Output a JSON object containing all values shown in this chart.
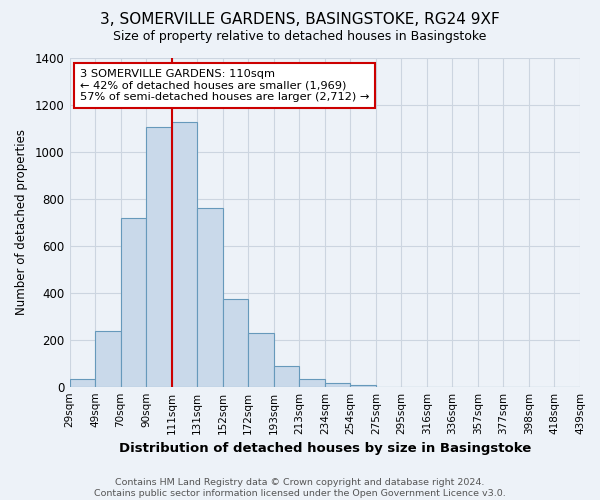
{
  "title": "3, SOMERVILLE GARDENS, BASINGSTOKE, RG24 9XF",
  "subtitle": "Size of property relative to detached houses in Basingstoke",
  "xlabel": "Distribution of detached houses by size in Basingstoke",
  "ylabel": "Number of detached properties",
  "categories": [
    "29sqm",
    "49sqm",
    "70sqm",
    "90sqm",
    "111sqm",
    "131sqm",
    "152sqm",
    "172sqm",
    "193sqm",
    "213sqm",
    "234sqm",
    "254sqm",
    "275sqm",
    "295sqm",
    "316sqm",
    "336sqm",
    "357sqm",
    "377sqm",
    "398sqm",
    "418sqm",
    "439sqm"
  ],
  "bar_heights": [
    35,
    240,
    720,
    1105,
    1125,
    760,
    375,
    230,
    90,
    35,
    20,
    10,
    0,
    0,
    0,
    0,
    0,
    0,
    0,
    0
  ],
  "bar_color": "#c9d9ea",
  "bar_edge_color": "#6699bb",
  "grid_color": "#ccd5e0",
  "background_color": "#edf2f8",
  "marker_color": "#cc0000",
  "marker_bin_index": 4,
  "annotation_text": "3 SOMERVILLE GARDENS: 110sqm\n← 42% of detached houses are smaller (1,969)\n57% of semi-detached houses are larger (2,712) →",
  "annotation_box_color": "white",
  "annotation_box_edge": "#cc0000",
  "footer": "Contains HM Land Registry data © Crown copyright and database right 2024.\nContains public sector information licensed under the Open Government Licence v3.0.",
  "ylim": [
    0,
    1400
  ],
  "yticks": [
    0,
    200,
    400,
    600,
    800,
    1000,
    1200,
    1400
  ]
}
